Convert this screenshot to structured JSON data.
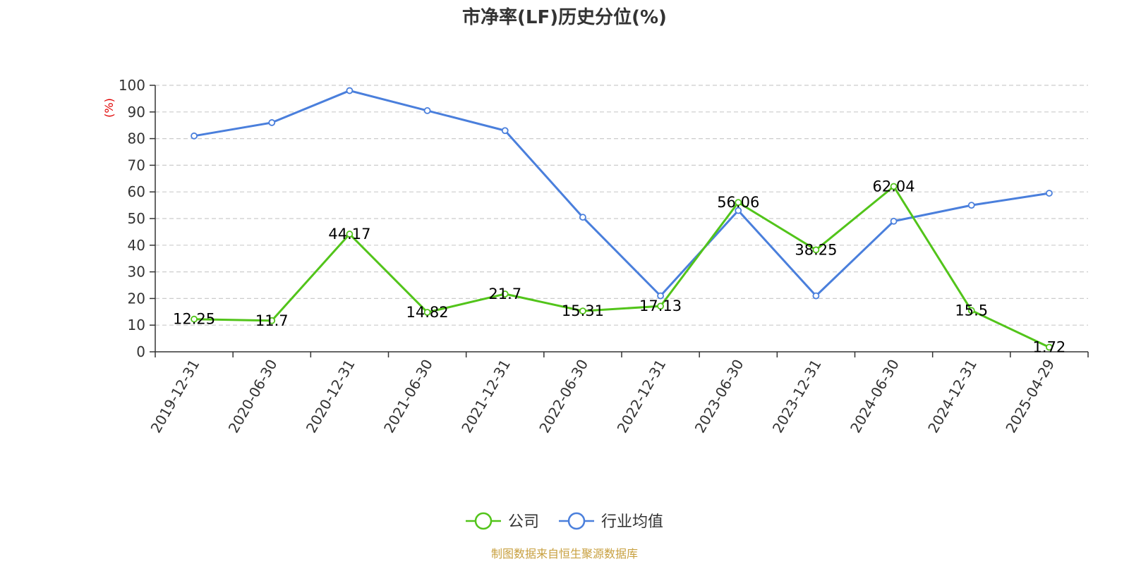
{
  "chart_data": {
    "type": "line",
    "title": "市净率(LF)历史分位(%)",
    "ylabel": "(%)",
    "xlabel": "",
    "categories": [
      "2019-12-31",
      "2020-06-30",
      "2020-12-31",
      "2021-06-30",
      "2021-12-31",
      "2022-06-30",
      "2022-12-31",
      "2023-06-30",
      "2023-12-31",
      "2024-06-30",
      "2024-12-31",
      "2025-04-29"
    ],
    "ylim": [
      0,
      100
    ],
    "yticks": [
      0,
      10,
      20,
      30,
      40,
      50,
      60,
      70,
      80,
      90,
      100
    ],
    "grid": true,
    "legend_position": "bottom",
    "series": [
      {
        "name": "公司",
        "color": "#52c41a",
        "values": [
          12.25,
          11.7,
          44.17,
          14.82,
          21.7,
          15.31,
          17.13,
          56.06,
          38.25,
          62.04,
          15.5,
          1.72
        ],
        "labels": [
          "12.25",
          "11.7",
          "44.17",
          "14.82",
          "21.7",
          "15.31",
          "17.13",
          "56.06",
          "38.25",
          "62.04",
          "15.5",
          "1.72"
        ]
      },
      {
        "name": "行业均值",
        "color": "#4a7fdc",
        "values": [
          81,
          86,
          98,
          90.5,
          83,
          50.5,
          21,
          53,
          21,
          49,
          55,
          59.5
        ]
      }
    ],
    "source": "制图数据来自恒生聚源数据库"
  }
}
